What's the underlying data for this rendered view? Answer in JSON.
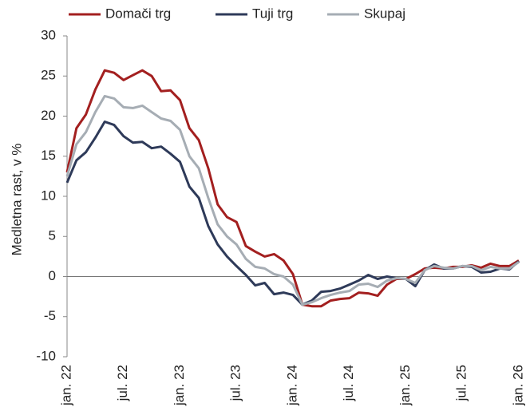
{
  "chart_data": {
    "type": "line",
    "y_label": "Medletna rast, v %",
    "categories": [
      "jan. 22",
      null,
      null,
      null,
      null,
      null,
      "jul. 22",
      null,
      null,
      null,
      null,
      null,
      "jan. 23",
      null,
      null,
      null,
      null,
      null,
      "jul. 23",
      null,
      null,
      null,
      null,
      null,
      "jan. 24",
      null,
      null,
      null,
      null,
      null,
      "jul. 24",
      null,
      null,
      null,
      null,
      null,
      "jan. 25",
      null,
      null,
      null,
      null,
      null,
      "jul. 25",
      null,
      null,
      null,
      null,
      null,
      "jan. 26"
    ],
    "series": [
      {
        "name": "Domači trg",
        "color": "#a31f1f",
        "values": [
          13,
          18.5,
          20.2,
          23.3,
          25.7,
          25.4,
          24.5,
          25.1,
          25.7,
          25.0,
          23.1,
          23.2,
          22.0,
          18.5,
          17.0,
          13.5,
          9.0,
          7.4,
          6.8,
          3.8,
          3.1,
          2.5,
          2.8,
          2.0,
          0.3,
          -3.5,
          -3.7,
          -3.7,
          -3.0,
          -2.8,
          -2.7,
          -2.0,
          -2.1,
          -2.4,
          -1.0,
          -0.3,
          -0.3,
          0.3,
          1.0,
          1.1,
          1.0,
          1.2,
          1.2,
          1.4,
          1.1,
          1.6,
          1.3,
          1.3,
          2.0
        ]
      },
      {
        "name": "Tuji trg",
        "color": "#2e3a59",
        "values": [
          11.7,
          14.5,
          15.5,
          17.3,
          19.3,
          18.9,
          17.5,
          16.7,
          16.8,
          16.0,
          16.2,
          15.3,
          14.3,
          11.2,
          9.8,
          6.3,
          4.0,
          2.5,
          1.3,
          0.2,
          -1.1,
          -0.8,
          -2.2,
          -2.0,
          -2.3,
          -3.5,
          -3.0,
          -1.9,
          -1.8,
          -1.5,
          -1.0,
          -0.5,
          0.2,
          -0.3,
          0.0,
          -0.2,
          -0.3,
          -1.2,
          0.8,
          1.5,
          1.0,
          1.0,
          1.3,
          1.2,
          0.5,
          0.6,
          1.0,
          0.9,
          1.9
        ]
      },
      {
        "name": "Skupaj",
        "color": "#a6adb4",
        "values": [
          12.5,
          16.5,
          18,
          20.5,
          22.5,
          22.2,
          21.1,
          21.0,
          21.3,
          20.5,
          19.7,
          19.4,
          18.3,
          15.0,
          13.5,
          9.8,
          6.5,
          5.0,
          4.0,
          2.2,
          1.2,
          1.0,
          0.3,
          0.0,
          -1.0,
          -3.5,
          -3.2,
          -2.7,
          -2.3,
          -2.0,
          -1.8,
          -1.0,
          -0.9,
          -1.3,
          -0.5,
          -0.2,
          -0.3,
          -0.8,
          0.8,
          1.3,
          1.1,
          1.0,
          1.3,
          1.3,
          0.8,
          1.2,
          1.0,
          1.0,
          1.8
        ]
      }
    ],
    "ylim": [
      -10,
      30
    ],
    "yticks": [
      -10,
      -5,
      0,
      5,
      10,
      15,
      20,
      25,
      30
    ],
    "grid": false,
    "legend_position": "top"
  }
}
